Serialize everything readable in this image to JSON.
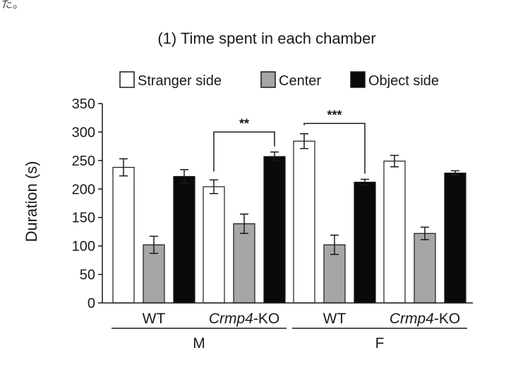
{
  "corner_text": "た。",
  "chart_data": {
    "type": "bar",
    "title": "(1) Time spent in each chamber",
    "ylabel": "Duration (s)",
    "xlabel": "",
    "ylim": [
      0,
      350
    ],
    "yticks": [
      0,
      50,
      100,
      150,
      200,
      250,
      300,
      350
    ],
    "legend_position": "top",
    "categories": [
      {
        "label_italic": "",
        "label": "WT"
      },
      {
        "label_italic": "Crmp4",
        "label": "-KO"
      },
      {
        "label_italic": "",
        "label": "WT"
      },
      {
        "label_italic": "Crmp4",
        "label": "-KO"
      }
    ],
    "groups": [
      {
        "label": "M",
        "categories": [
          0,
          1
        ]
      },
      {
        "label": "F",
        "categories": [
          2,
          3
        ]
      }
    ],
    "series": [
      {
        "name": "Stranger side",
        "color": "#ffffff",
        "values": [
          238,
          204,
          284,
          249
        ],
        "errors": [
          15,
          12,
          13,
          10
        ]
      },
      {
        "name": "Center",
        "color": "#a6a6a6",
        "values": [
          102,
          139,
          102,
          122
        ],
        "errors": [
          15,
          17,
          17,
          11
        ]
      },
      {
        "name": "Object side",
        "color": "#0a0a0a",
        "values": [
          222,
          257,
          212,
          228
        ],
        "errors": [
          12,
          8,
          5,
          4
        ]
      }
    ],
    "significance": [
      {
        "category": 1,
        "from_series": 0,
        "to_series": 2,
        "label": "**",
        "top_value": 300
      },
      {
        "category": 2,
        "from_series": 0,
        "to_series": 2,
        "label": "***",
        "top_value": 315
      }
    ]
  }
}
